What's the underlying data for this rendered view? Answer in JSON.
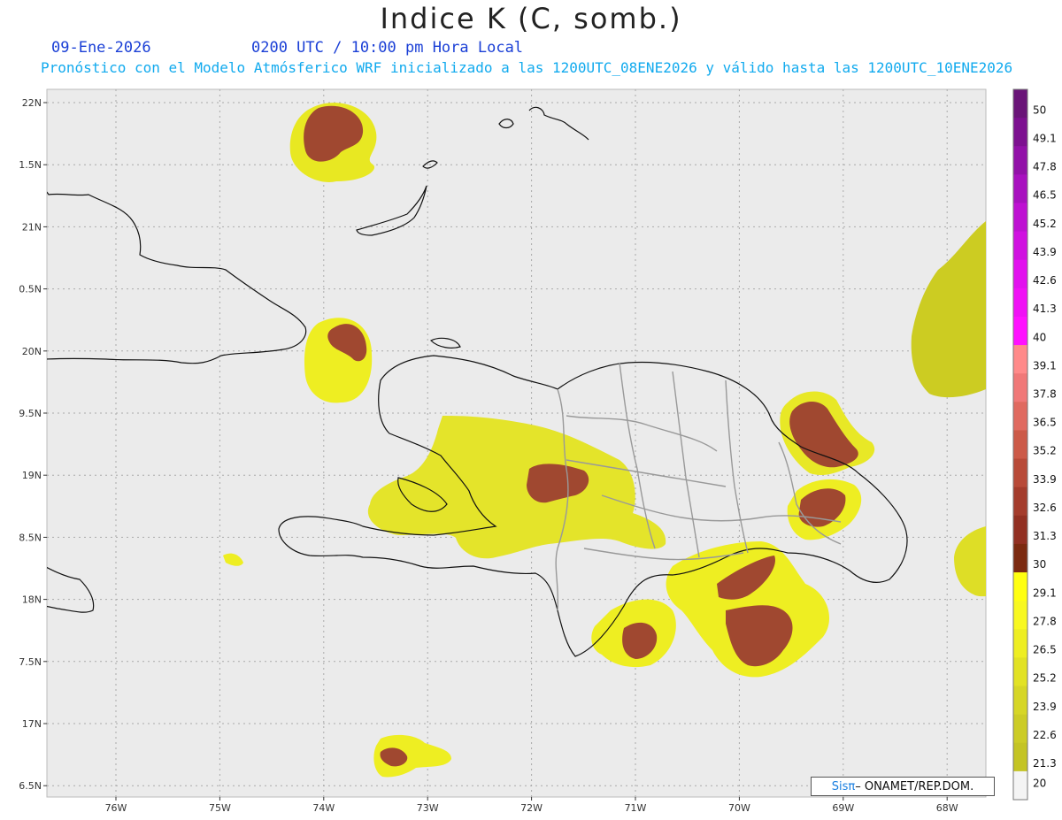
{
  "title": "Indice K (C, somb.)",
  "header": {
    "date": "09-Ene-2026",
    "time": "0200 UTC / 10:00 pm Hora Local",
    "subtitle": "Pronóstico con el Modelo Atmósferico WRF inicializado a las 1200UTC_08ENE2026 y válido hasta las  1200UTC_10ENE2026"
  },
  "axes": {
    "latitudes": [
      "22N",
      "1.5N",
      "21N",
      "0.5N",
      "20N",
      "9.5N",
      "19N",
      "8.5N",
      "18N",
      "7.5N",
      "17N",
      "6.5N"
    ],
    "longitudes": [
      "76W",
      "75W",
      "74W",
      "73W",
      "72W",
      "71W",
      "70W",
      "69W",
      "68W"
    ]
  },
  "colorbar": {
    "labels": [
      "50",
      "49.1",
      "47.8",
      "46.5",
      "45.2",
      "43.9",
      "42.6",
      "41.3",
      "40",
      "39.1",
      "37.8",
      "36.5",
      "35.2",
      "33.9",
      "32.6",
      "31.3",
      "30",
      "29.1",
      "27.8",
      "26.5",
      "25.2",
      "23.9",
      "22.6",
      "21.3",
      "20"
    ],
    "colors": [
      "#6a1478",
      "#7d1090",
      "#9210a8",
      "#a810bf",
      "#be10d2",
      "#d010e0",
      "#e210ee",
      "#f010f5",
      "#ff10ff",
      "#ff8a8a",
      "#f07878",
      "#e06a60",
      "#cc5a48",
      "#b84a38",
      "#a43c2c",
      "#923022",
      "#7c2a10",
      "#ffff10",
      "#f8f820",
      "#eeee22",
      "#e2e224",
      "#d6d626",
      "#cccc26",
      "#c4c424",
      "#f4f4f4"
    ]
  },
  "credit": {
    "sis": "Sisπ",
    "org": " – ONAMET/REP.DOM."
  }
}
